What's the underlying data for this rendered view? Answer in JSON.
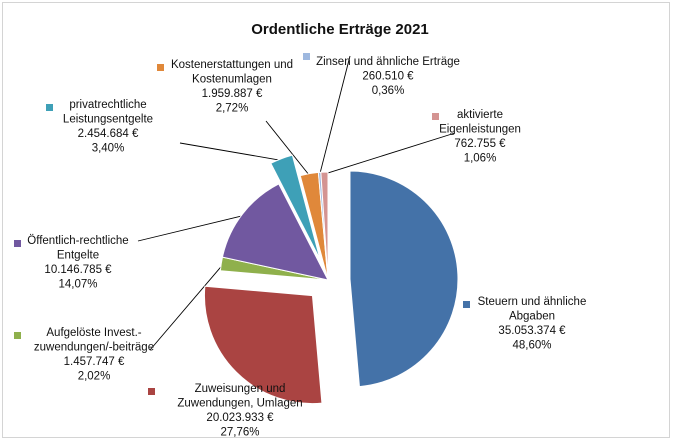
{
  "chart_data": {
    "type": "pie",
    "title": "Ordentliche Erträge 2021",
    "slices": [
      {
        "name": [
          "Steuern und ähnliche",
          "Abgaben"
        ],
        "value": 35053374,
        "value_label": "35.053.374 €",
        "percent": 48.6,
        "percent_label": "48,60%",
        "color": "#4472a8",
        "exploded": true
      },
      {
        "name": [
          "Zuweisungen und",
          "Zuwendungen, Umlagen"
        ],
        "value": 20023933,
        "value_label": "20.023.933 €",
        "percent": 27.76,
        "percent_label": "27,76%",
        "color": "#aa4442",
        "exploded": true
      },
      {
        "name": [
          "Aufgelöste Invest.-",
          "zuwendungen/-beiträge"
        ],
        "value": 1457747,
        "value_label": "1.457.747 €",
        "percent": 2.02,
        "percent_label": "2,02%",
        "color": "#8fb04c",
        "exploded": false
      },
      {
        "name": [
          "Öffentlich-rechtliche",
          "Entgelte"
        ],
        "value": 10146785,
        "value_label": "10.146.785 €",
        "percent": 14.07,
        "percent_label": "14,07%",
        "color": "#7158a0",
        "exploded": false
      },
      {
        "name": [
          "privatrechtliche",
          "Leistungsentgelte"
        ],
        "value": 2454684,
        "value_label": "2.454.684 €",
        "percent": 3.4,
        "percent_label": "3,40%",
        "color": "#3ea0b7",
        "exploded": true
      },
      {
        "name": [
          "Kostenerstattungen und",
          "Kostenumlagen"
        ],
        "value": 1959887,
        "value_label": "1.959.887 €",
        "percent": 2.72,
        "percent_label": "2,72%",
        "color": "#e0883a",
        "exploded": false
      },
      {
        "name": [
          "Zinsen und ähnliche Erträge"
        ],
        "value": 260510,
        "value_label": "260.510 €",
        "percent": 0.36,
        "percent_label": "0,36%",
        "color": "#9eb8df",
        "exploded": false
      },
      {
        "name": [
          "aktivierte",
          "Eigenleistungen"
        ],
        "value": 762755,
        "value_label": "762.755 €",
        "percent": 1.06,
        "percent_label": "1,06%",
        "color": "#d49492",
        "exploded": false
      }
    ]
  }
}
